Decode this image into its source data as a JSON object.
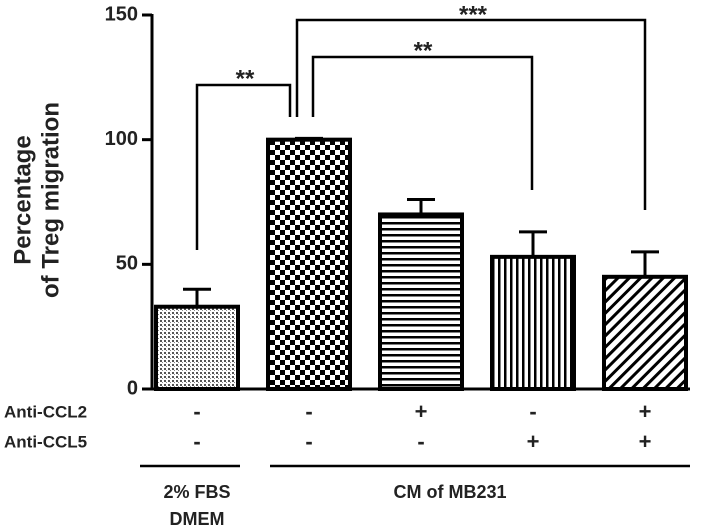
{
  "chart_data": {
    "type": "bar",
    "ylabel": [
      "Percentage",
      "of Treg migration"
    ],
    "values": [
      33,
      100,
      70,
      53,
      45
    ],
    "errors": [
      7,
      0.5,
      6,
      10,
      10
    ],
    "patterns": [
      "dots",
      "checker",
      "horizontal",
      "vertical",
      "diagonal"
    ],
    "color": "#000000",
    "ylim": [
      0,
      150
    ],
    "yticks": [
      0,
      50,
      100,
      150
    ],
    "annotations": [
      "**",
      "**",
      "***"
    ],
    "table": {
      "rows": [
        {
          "label": "Anti-CCL2",
          "values": [
            "-",
            "-",
            "+",
            "-",
            "+"
          ]
        },
        {
          "label": "Anti-CCL5",
          "values": [
            "-",
            "-",
            "-",
            "+",
            "+"
          ]
        }
      ],
      "groups": [
        {
          "label": [
            "2% FBS",
            "DMEM"
          ]
        },
        {
          "label": [
            "CM of MB231"
          ]
        }
      ]
    }
  }
}
